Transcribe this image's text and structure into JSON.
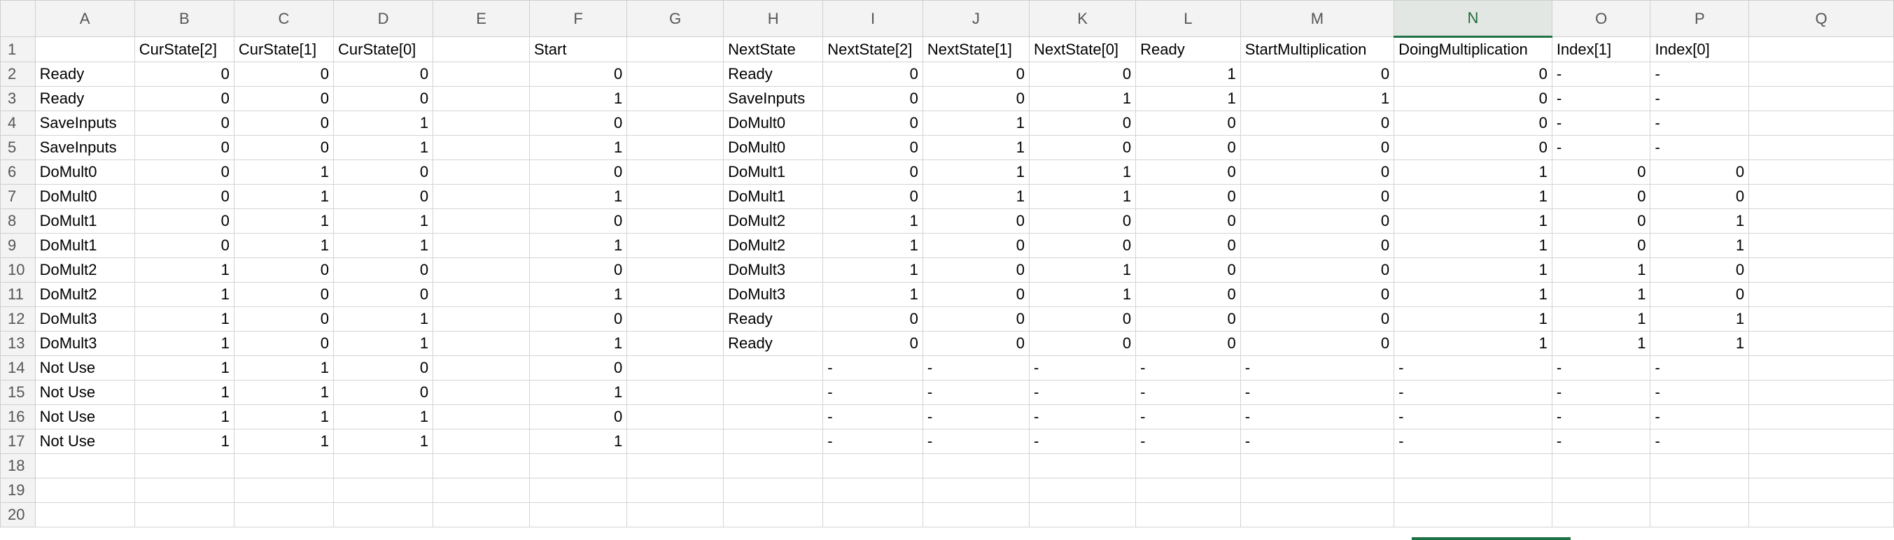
{
  "colors": {
    "header_bg": "#f3f3f3",
    "selection_green": "#1e7145",
    "gridline": "#d4d4d4"
  },
  "selected_column": "N",
  "columns": [
    "A",
    "B",
    "C",
    "D",
    "E",
    "F",
    "G",
    "H",
    "I",
    "J",
    "K",
    "L",
    "M",
    "N",
    "O",
    "P",
    "Q"
  ],
  "rows": [
    [
      "",
      "CurState[2]",
      "CurState[1]",
      "CurState[0]",
      "",
      "Start",
      "",
      "NextState",
      "NextState[2]",
      "NextState[1]",
      "NextState[0]",
      "Ready",
      "StartMultiplication",
      "DoingMultiplication",
      "Index[1]",
      "Index[0]",
      ""
    ],
    [
      "Ready",
      0,
      0,
      0,
      "",
      0,
      "",
      "Ready",
      0,
      0,
      0,
      1,
      0,
      0,
      "-",
      "-",
      ""
    ],
    [
      "Ready",
      0,
      0,
      0,
      "",
      1,
      "",
      "SaveInputs",
      0,
      0,
      1,
      1,
      1,
      0,
      "-",
      "-",
      ""
    ],
    [
      "SaveInputs",
      0,
      0,
      1,
      "",
      0,
      "",
      "DoMult0",
      0,
      1,
      0,
      0,
      0,
      0,
      "-",
      "-",
      ""
    ],
    [
      "SaveInputs",
      0,
      0,
      1,
      "",
      1,
      "",
      "DoMult0",
      0,
      1,
      0,
      0,
      0,
      0,
      "-",
      "-",
      ""
    ],
    [
      "DoMult0",
      0,
      1,
      0,
      "",
      0,
      "",
      "DoMult1",
      0,
      1,
      1,
      0,
      0,
      1,
      0,
      0,
      ""
    ],
    [
      "DoMult0",
      0,
      1,
      0,
      "",
      1,
      "",
      "DoMult1",
      0,
      1,
      1,
      0,
      0,
      1,
      0,
      0,
      ""
    ],
    [
      "DoMult1",
      0,
      1,
      1,
      "",
      0,
      "",
      "DoMult2",
      1,
      0,
      0,
      0,
      0,
      1,
      0,
      1,
      ""
    ],
    [
      "DoMult1",
      0,
      1,
      1,
      "",
      1,
      "",
      "DoMult2",
      1,
      0,
      0,
      0,
      0,
      1,
      0,
      1,
      ""
    ],
    [
      "DoMult2",
      1,
      0,
      0,
      "",
      0,
      "",
      "DoMult3",
      1,
      0,
      1,
      0,
      0,
      1,
      1,
      0,
      ""
    ],
    [
      "DoMult2",
      1,
      0,
      0,
      "",
      1,
      "",
      "DoMult3",
      1,
      0,
      1,
      0,
      0,
      1,
      1,
      0,
      ""
    ],
    [
      "DoMult3",
      1,
      0,
      1,
      "",
      0,
      "",
      "Ready",
      0,
      0,
      0,
      0,
      0,
      1,
      1,
      1,
      ""
    ],
    [
      "DoMult3",
      1,
      0,
      1,
      "",
      1,
      "",
      "Ready",
      0,
      0,
      0,
      0,
      0,
      1,
      1,
      1,
      ""
    ],
    [
      "Not Use",
      1,
      1,
      0,
      "",
      0,
      "",
      "",
      "-",
      "-",
      "-",
      "-",
      "-",
      "-",
      "-",
      "-",
      ""
    ],
    [
      "Not Use",
      1,
      1,
      0,
      "",
      1,
      "",
      "",
      "-",
      "-",
      "-",
      "-",
      "-",
      "-",
      "-",
      "-",
      ""
    ],
    [
      "Not Use",
      1,
      1,
      1,
      "",
      0,
      "",
      "",
      "-",
      "-",
      "-",
      "-",
      "-",
      "-",
      "-",
      "-",
      ""
    ],
    [
      "Not Use",
      1,
      1,
      1,
      "",
      1,
      "",
      "",
      "-",
      "-",
      "-",
      "-",
      "-",
      "-",
      "-",
      "-",
      ""
    ],
    [
      "",
      "",
      "",
      "",
      "",
      "",
      "",
      "",
      "",
      "",
      "",
      "",
      "",
      "",
      "",
      "",
      ""
    ],
    [
      "",
      "",
      "",
      "",
      "",
      "",
      "",
      "",
      "",
      "",
      "",
      "",
      "",
      "",
      "",
      "",
      ""
    ],
    [
      "",
      "",
      "",
      "",
      "",
      "",
      "",
      "",
      "",
      "",
      "",
      "",
      "",
      "",
      "",
      "",
      ""
    ]
  ]
}
